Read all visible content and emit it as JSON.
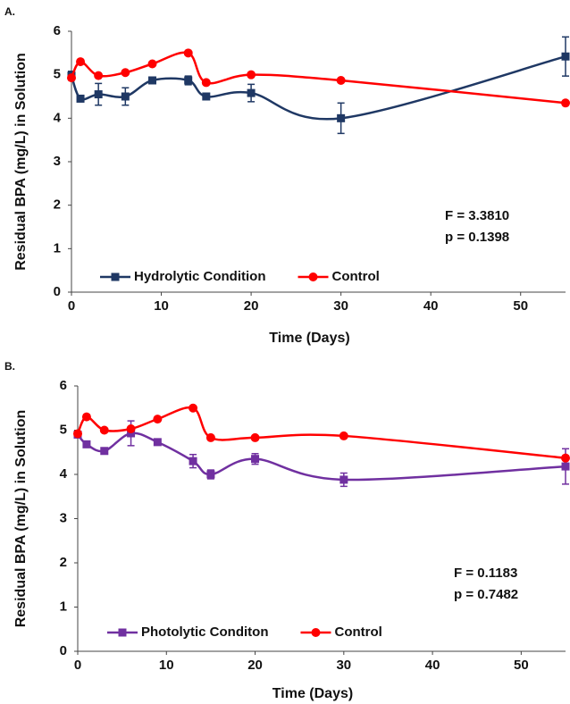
{
  "chart_data": [
    {
      "type": "line",
      "panel_label": "A.",
      "x_label": "Time (Days)",
      "y_label": "Residual BPA (mg/L) in Solution",
      "xlim": [
        0,
        55
      ],
      "ylim": [
        0,
        6
      ],
      "xticks": [
        0,
        10,
        20,
        30,
        40,
        50
      ],
      "yticks": [
        0,
        1,
        2,
        3,
        4,
        5,
        6
      ],
      "legend": "lower left",
      "annotations": [
        "F = 3.3810",
        "p = 0.1398"
      ],
      "series": [
        {
          "name": "Hydrolytic Condition",
          "color": "#1f3864",
          "marker": "square",
          "x": [
            0,
            1,
            3,
            6,
            9,
            13,
            15,
            20,
            30,
            55
          ],
          "values": [
            4.98,
            4.45,
            4.55,
            4.5,
            4.87,
            4.87,
            4.5,
            4.58,
            4.0,
            5.42
          ],
          "errors": [
            0.1,
            0.05,
            0.25,
            0.2,
            0.05,
            0.1,
            0.05,
            0.2,
            0.35,
            0.45
          ]
        },
        {
          "name": "Control",
          "color": "#ff0000",
          "marker": "circle",
          "x": [
            0,
            1,
            3,
            6,
            9,
            13,
            15,
            20,
            30,
            55
          ],
          "values": [
            4.93,
            5.3,
            4.98,
            5.05,
            5.25,
            5.5,
            4.82,
            5.0,
            4.87,
            4.35
          ]
        }
      ]
    },
    {
      "type": "line",
      "panel_label": "B.",
      "x_label": "Time (Days)",
      "y_label": "Residual BPA (mg/L) in Solution",
      "xlim": [
        0,
        55
      ],
      "ylim": [
        0,
        6
      ],
      "xticks": [
        0,
        10,
        20,
        30,
        40,
        50
      ],
      "yticks": [
        0,
        1,
        2,
        3,
        4,
        5,
        6
      ],
      "legend": "lower left",
      "annotations": [
        "F = 0.1183",
        "p = 0.7482"
      ],
      "series": [
        {
          "name": "Photolytic Conditon",
          "color": "#7030a0",
          "marker": "square",
          "x": [
            0,
            1,
            3,
            6,
            9,
            13,
            15,
            20,
            30,
            55
          ],
          "values": [
            4.9,
            4.68,
            4.53,
            4.93,
            4.73,
            4.3,
            4.0,
            4.35,
            3.88,
            4.18
          ],
          "errors": [
            0.05,
            0.05,
            0.05,
            0.28,
            0.05,
            0.15,
            0.1,
            0.12,
            0.15,
            0.4
          ]
        },
        {
          "name": "Control",
          "color": "#ff0000",
          "marker": "circle",
          "x": [
            0,
            1,
            3,
            6,
            9,
            13,
            15,
            20,
            30,
            55
          ],
          "values": [
            4.92,
            5.3,
            5.0,
            5.03,
            5.25,
            5.5,
            4.83,
            4.83,
            4.87,
            4.37
          ]
        }
      ]
    }
  ]
}
